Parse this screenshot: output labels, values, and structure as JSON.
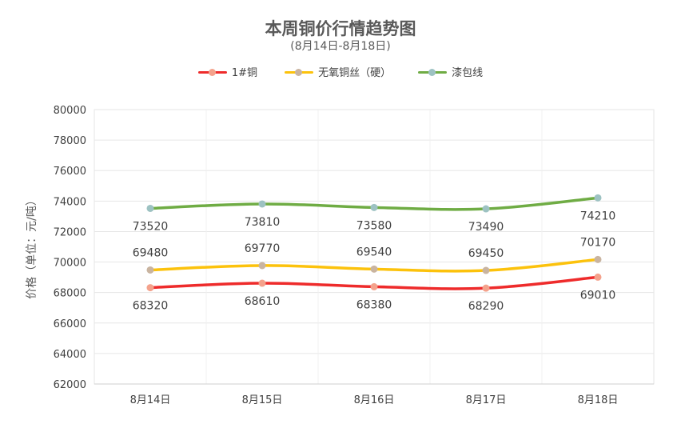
{
  "chart_data": {
    "type": "line",
    "title": "本周铜价行情趋势图",
    "subtitle": "(8月14日-8月18日)",
    "xlabel": "",
    "ylabel": "价格（单位：元/吨）",
    "categories": [
      "8月14日",
      "8月15日",
      "8月16日",
      "8月17日",
      "8月18日"
    ],
    "ylim": [
      62000,
      80000
    ],
    "yticks": [
      62000,
      64000,
      66000,
      68000,
      70000,
      72000,
      74000,
      76000,
      78000,
      80000
    ],
    "grid": true,
    "legend_position": "top",
    "smooth": true,
    "series": [
      {
        "name": "1#铜",
        "values": [
          68320,
          68610,
          68380,
          68290,
          69010
        ],
        "color": "#ee2b2b",
        "marker_color": "#f4a28c",
        "label_position": "below"
      },
      {
        "name": "无氧铜丝（硬）",
        "values": [
          69480,
          69770,
          69540,
          69450,
          70170
        ],
        "color": "#fcc20c",
        "marker_color": "#c9b4a0",
        "label_position": "above"
      },
      {
        "name": "漆包线",
        "values": [
          73520,
          73810,
          73580,
          73490,
          74210
        ],
        "color": "#6fac44",
        "marker_color": "#9dc2c2",
        "label_position": "below"
      }
    ]
  }
}
